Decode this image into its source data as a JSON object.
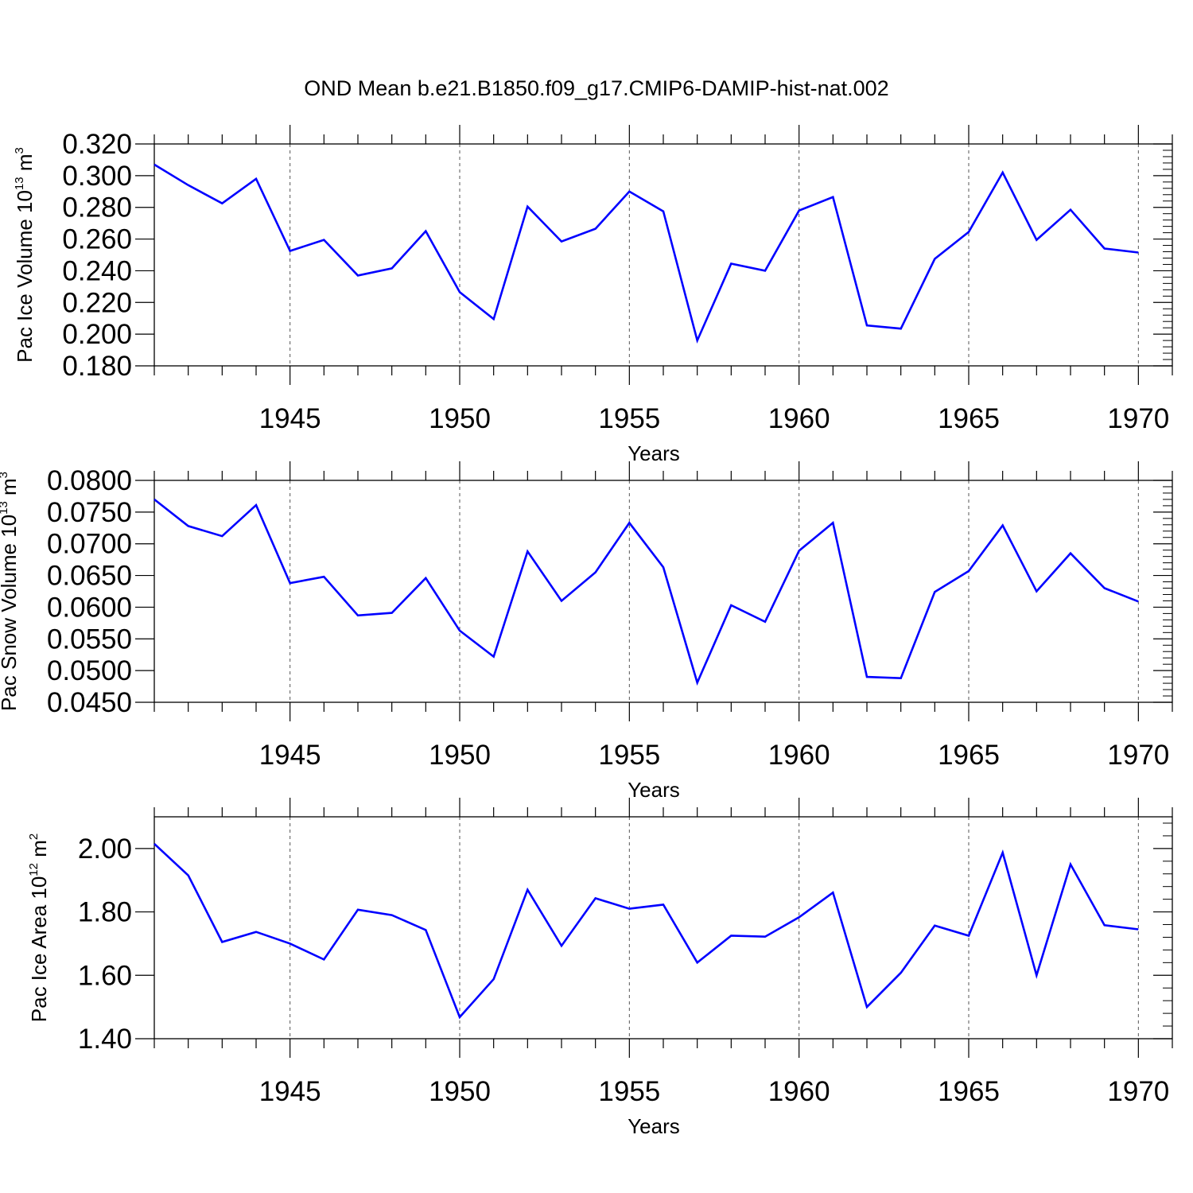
{
  "title": "OND Mean b.e21.B1850.f09_g17.CMIP6-DAMIP-hist-nat.002",
  "line_color": "#0000ff",
  "chart_data": [
    {
      "type": "line",
      "xlabel": "Years",
      "ylabel_base": "Pac Ice Volume 10",
      "ylabel_exp": "13",
      "ylabel_unit": " m",
      "ylabel_unit_exp": "3",
      "xlim": [
        1941,
        1971
      ],
      "ylim": [
        0.18,
        0.32
      ],
      "xticks": [
        1945,
        1950,
        1955,
        1960,
        1965,
        1970
      ],
      "xtick_labels": [
        "1945",
        "1950",
        "1955",
        "1960",
        "1965",
        "1970"
      ],
      "yticks": [
        0.18,
        0.2,
        0.22,
        0.24,
        0.26,
        0.28,
        0.3,
        0.32
      ],
      "ytick_labels": [
        "0.180",
        "0.200",
        "0.220",
        "0.240",
        "0.260",
        "0.280",
        "0.300",
        "0.320"
      ],
      "x": [
        1941,
        1942,
        1943,
        1944,
        1945,
        1946,
        1947,
        1948,
        1949,
        1950,
        1951,
        1952,
        1953,
        1954,
        1955,
        1956,
        1957,
        1958,
        1959,
        1960,
        1961,
        1962,
        1963,
        1964,
        1965,
        1966,
        1967,
        1968,
        1969,
        1970
      ],
      "y": [
        0.307,
        0.294,
        0.2825,
        0.298,
        0.2525,
        0.2595,
        0.237,
        0.2415,
        0.265,
        0.2265,
        0.2095,
        0.2805,
        0.2585,
        0.2665,
        0.29,
        0.2775,
        0.196,
        0.2445,
        0.24,
        0.278,
        0.2865,
        0.2055,
        0.2035,
        0.2475,
        0.2645,
        0.302,
        0.2595,
        0.2785,
        0.254,
        0.2515
      ]
    },
    {
      "type": "line",
      "xlabel": "Years",
      "ylabel_base": "Pac Snow Volume 10",
      "ylabel_exp": "13",
      "ylabel_unit": " m",
      "ylabel_unit_exp": "3",
      "xlim": [
        1941,
        1971
      ],
      "ylim": [
        0.045,
        0.08
      ],
      "xticks": [
        1945,
        1950,
        1955,
        1960,
        1965,
        1970
      ],
      "xtick_labels": [
        "1945",
        "1950",
        "1955",
        "1960",
        "1965",
        "1970"
      ],
      "yticks": [
        0.045,
        0.05,
        0.055,
        0.06,
        0.065,
        0.07,
        0.075,
        0.08
      ],
      "ytick_labels": [
        "0.0450",
        "0.0500",
        "0.0550",
        "0.0600",
        "0.0650",
        "0.0700",
        "0.0750",
        "0.0800"
      ],
      "x": [
        1941,
        1942,
        1943,
        1944,
        1945,
        1946,
        1947,
        1948,
        1949,
        1950,
        1951,
        1952,
        1953,
        1954,
        1955,
        1956,
        1957,
        1958,
        1959,
        1960,
        1961,
        1962,
        1963,
        1964,
        1965,
        1966,
        1967,
        1968,
        1969,
        1970
      ],
      "y": [
        0.077,
        0.0728,
        0.0712,
        0.0761,
        0.0638,
        0.0648,
        0.0587,
        0.0591,
        0.0646,
        0.0563,
        0.0522,
        0.0688,
        0.061,
        0.0655,
        0.0733,
        0.0663,
        0.0481,
        0.0603,
        0.0577,
        0.0689,
        0.0733,
        0.049,
        0.0488,
        0.0624,
        0.0657,
        0.0729,
        0.0625,
        0.0685,
        0.063,
        0.0609
      ]
    },
    {
      "type": "line",
      "xlabel": "Years",
      "ylabel_base": "Pac Ice Area 10",
      "ylabel_exp": "12",
      "ylabel_unit": " m",
      "ylabel_unit_exp": "2",
      "xlim": [
        1941,
        1971
      ],
      "ylim": [
        1.4,
        2.1
      ],
      "xticks": [
        1945,
        1950,
        1955,
        1960,
        1965,
        1970
      ],
      "xtick_labels": [
        "1945",
        "1950",
        "1955",
        "1960",
        "1965",
        "1970"
      ],
      "yticks": [
        1.4,
        1.6,
        1.8,
        2.0
      ],
      "ytick_labels": [
        "1.40",
        "1.60",
        "1.80",
        "2.00"
      ],
      "x": [
        1941,
        1942,
        1943,
        1944,
        1945,
        1946,
        1947,
        1948,
        1949,
        1950,
        1951,
        1952,
        1953,
        1954,
        1955,
        1956,
        1957,
        1958,
        1959,
        1960,
        1961,
        1962,
        1963,
        1964,
        1965,
        1966,
        1967,
        1968,
        1969,
        1970
      ],
      "y": [
        2.015,
        1.915,
        1.705,
        1.737,
        1.7,
        1.65,
        1.807,
        1.79,
        1.743,
        1.468,
        1.588,
        1.87,
        1.693,
        1.843,
        1.81,
        1.823,
        1.64,
        1.725,
        1.722,
        1.783,
        1.861,
        1.5,
        1.608,
        1.757,
        1.725,
        1.987,
        1.6,
        1.95,
        1.758,
        1.745
      ]
    }
  ]
}
